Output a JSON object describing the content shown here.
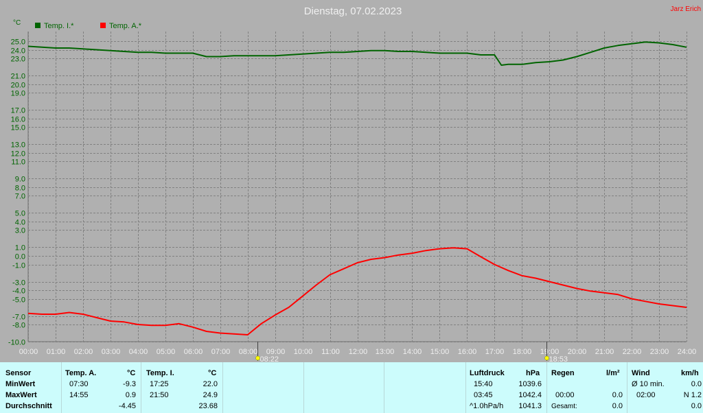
{
  "header": {
    "title": "Dienstag, 07.02.2023",
    "author": "Jarz Erich",
    "unit": "°C"
  },
  "colors": {
    "inside": "#006400",
    "outside": "#ff0000",
    "background": "#b0b0b0",
    "panel": "#ccfcfc"
  },
  "chart_data": {
    "type": "line",
    "title": "Dienstag, 07.02.2023",
    "ylabel": "°C",
    "ylim": [
      -10,
      26
    ],
    "y_scale": "nonlinear (denser above 0)",
    "grid": true,
    "legend_position": "top-left",
    "yticks": [
      25.0,
      24.0,
      23.0,
      21.0,
      20.0,
      19.0,
      17.0,
      16.0,
      15.0,
      13.0,
      12.0,
      11.0,
      9.0,
      8.0,
      7.0,
      5.0,
      4.0,
      3.0,
      1.0,
      0.0,
      -1.0,
      -3.0,
      -4.0,
      -5.0,
      -7.0,
      -8.0,
      -10.0
    ],
    "ytick_labels": [
      "25.0",
      "24.0",
      "23.0",
      "21.0",
      "20.0",
      "19.0",
      "17.0",
      "16.0",
      "15.0",
      "13.0",
      "12.0",
      "11.0",
      "9.0",
      "8.0",
      "7.0",
      "5.0",
      "4.0",
      "3.0",
      "1.0",
      "0.0",
      "-1.0",
      "-3.0",
      "-4.0",
      "-5.0",
      "-7.0",
      "-8.0",
      "-10.0"
    ],
    "xticks": [
      "00:00",
      "01:00",
      "02:00",
      "03:00",
      "04:00",
      "05:00",
      "06:00",
      "07:00",
      "08:00",
      "09:00",
      "10:00",
      "11:00",
      "12:00",
      "13:00",
      "14:00",
      "15:00",
      "16:00",
      "17:00",
      "18:00",
      "19:00",
      "20:00",
      "21:00",
      "22:00",
      "23:00",
      "24:00"
    ],
    "x_markers": [
      {
        "time": "08:22",
        "label": "08:22"
      },
      {
        "time": "18:53",
        "label": "18:53"
      }
    ],
    "series": [
      {
        "name": "Temp. I.*",
        "x": [
          0,
          0.5,
          1,
          1.5,
          2,
          2.5,
          3,
          3.5,
          4,
          4.5,
          5,
          5.5,
          6,
          6.5,
          7,
          7.5,
          8,
          8.5,
          9,
          9.5,
          10,
          10.5,
          11,
          11.5,
          12,
          12.5,
          13,
          13.5,
          14,
          14.5,
          15,
          15.5,
          16,
          16.5,
          17,
          17.25,
          17.5,
          18,
          18.5,
          19,
          19.5,
          20,
          20.5,
          21,
          21.5,
          22,
          22.5,
          23,
          23.5,
          24
        ],
        "values": [
          24.4,
          24.3,
          24.2,
          24.2,
          24.1,
          24.0,
          23.9,
          23.8,
          23.7,
          23.7,
          23.6,
          23.6,
          23.6,
          23.2,
          23.2,
          23.3,
          23.3,
          23.3,
          23.3,
          23.4,
          23.5,
          23.6,
          23.7,
          23.7,
          23.8,
          23.9,
          23.9,
          23.8,
          23.8,
          23.7,
          23.6,
          23.6,
          23.6,
          23.4,
          23.4,
          22.2,
          22.3,
          22.3,
          22.5,
          22.6,
          22.8,
          23.2,
          23.7,
          24.2,
          24.5,
          24.7,
          24.9,
          24.8,
          24.6,
          24.3
        ]
      },
      {
        "name": "Temp. A.*",
        "x": [
          0,
          0.5,
          1,
          1.5,
          2,
          2.5,
          3,
          3.5,
          4,
          4.5,
          5,
          5.5,
          6,
          6.5,
          7,
          7.5,
          8,
          8.5,
          9,
          9.5,
          10,
          10.5,
          11,
          11.5,
          12,
          12.5,
          13,
          13.5,
          14,
          14.5,
          15,
          15.5,
          16,
          16.5,
          17,
          17.5,
          18,
          18.5,
          19,
          19.5,
          20,
          20.5,
          21,
          21.5,
          22,
          22.5,
          23,
          23.5,
          24
        ],
        "values": [
          -6.7,
          -6.8,
          -6.8,
          -6.6,
          -6.8,
          -7.2,
          -7.6,
          -7.7,
          -8.0,
          -8.1,
          -8.1,
          -7.9,
          -8.3,
          -8.8,
          -9.0,
          -9.1,
          -9.2,
          -7.9,
          -6.9,
          -6.0,
          -4.7,
          -3.4,
          -2.2,
          -1.5,
          -0.8,
          -0.4,
          -0.2,
          0.1,
          0.3,
          0.6,
          0.8,
          0.9,
          0.8,
          -0.1,
          -1.0,
          -1.7,
          -2.3,
          -2.6,
          -3.0,
          -3.4,
          -3.8,
          -4.1,
          -4.3,
          -4.5,
          -5.0,
          -5.3,
          -5.6,
          -5.8,
          -6.0
        ]
      }
    ]
  },
  "stats": {
    "sensor": {
      "header": "Sensor",
      "rows": [
        "MinWert",
        "MaxWert",
        "Durchschnitt"
      ]
    },
    "temp_a": {
      "header": "Temp. A.",
      "unit": "°C",
      "min_time": "07:30",
      "min_val": "-9.3",
      "max_time": "14:55",
      "max_val": "0.9",
      "avg": "-4.45"
    },
    "temp_i": {
      "header": "Temp. I.",
      "unit": "°C",
      "min_time": "17:25",
      "min_val": "22.0",
      "max_time": "21:50",
      "max_val": "24.9",
      "avg": "23.68"
    },
    "pressure": {
      "header": "Luftdruck",
      "unit": "hPa",
      "min_time": "15:40",
      "min_val": "1039.6",
      "max_time": "03:45",
      "max_val": "1042.4",
      "trend": "^1.0hPa/h",
      "current": "1041.3"
    },
    "rain": {
      "header": "Regen",
      "unit": "l/m²",
      "time": "00:00",
      "val": "0.0",
      "total_label": "Gesamt:",
      "total_val": "0.0",
      "row0_val": "0.0"
    },
    "wind": {
      "header": "Wind",
      "unit": "km/h",
      "avg_label": "Ø 10 min.",
      "avg_val": "0.0",
      "max_time": "02:00",
      "max_val": "N 1.2",
      "last_val": "0.0"
    }
  }
}
